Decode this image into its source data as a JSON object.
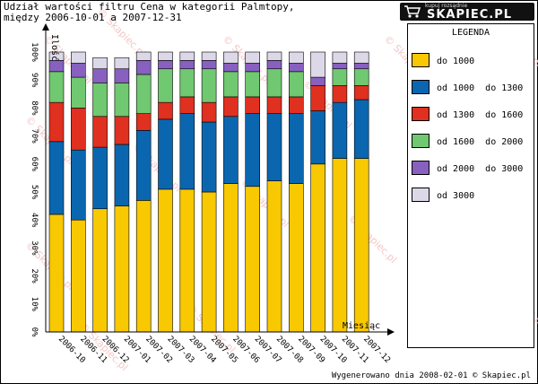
{
  "title_line1": "Udział wartości filtru Cena w kategorii Palmtopy,",
  "title_line2": "między 2006-10-01 a 2007-12-31",
  "logo": {
    "tagline": "kupuj rozsądnie",
    "brand": "SKAPIEC.PL",
    "icon": "cart-icon"
  },
  "footer": "Wygenerowano dnia 2008-02-01 © Skapiec.pl",
  "watermark": "© Skapiec.pl",
  "chart_data": {
    "type": "bar",
    "stacked": true,
    "xlabel": "Miesiąc",
    "ylabel": "Ilość",
    "ylim": [
      0,
      100
    ],
    "yticks": [
      "0%",
      "10%",
      "20%",
      "30%",
      "40%",
      "50%",
      "60%",
      "70%",
      "80%",
      "90%",
      "100%"
    ],
    "categories": [
      "2006-10",
      "2006-11",
      "2006-12",
      "2007-01",
      "2007-02",
      "2007-03",
      "2007-04",
      "2007-05",
      "2007-06",
      "2007-07",
      "2007-08",
      "2007-09",
      "2007-10",
      "2007-11",
      "2007-12"
    ],
    "legend_title": "LEGENDA",
    "legend_position": "right",
    "series": [
      {
        "name": "do 1000",
        "color": "#f8c800",
        "values": [
          42,
          40,
          44,
          45,
          47,
          51,
          51,
          50,
          53,
          52,
          54,
          53,
          60,
          62,
          62
        ]
      },
      {
        "name": "od 1000  do 1300",
        "color": "#0b66b0",
        "values": [
          26,
          25,
          22,
          22,
          25,
          25,
          27,
          25,
          24,
          26,
          24,
          25,
          19,
          20,
          21
        ]
      },
      {
        "name": "od 1300  do 1600",
        "color": "#e03020",
        "values": [
          14,
          15,
          11,
          10,
          6,
          6,
          6,
          7,
          7,
          6,
          6,
          6,
          9,
          6,
          5
        ]
      },
      {
        "name": "od 1600  do 2000",
        "color": "#70c870",
        "values": [
          11,
          11,
          12,
          12,
          14,
          12,
          10,
          12,
          9,
          9,
          10,
          9,
          0,
          6,
          6
        ]
      },
      {
        "name": "od 2000  do 3000",
        "color": "#8860c0",
        "values": [
          4,
          5,
          5,
          5,
          5,
          3,
          3,
          3,
          3,
          3,
          3,
          3,
          3,
          2,
          2
        ]
      },
      {
        "name": "od 3000",
        "color": "#dcd8e8",
        "values": [
          3,
          4,
          4,
          4,
          3,
          3,
          3,
          3,
          4,
          4,
          3,
          4,
          9,
          4,
          4
        ]
      }
    ]
  }
}
